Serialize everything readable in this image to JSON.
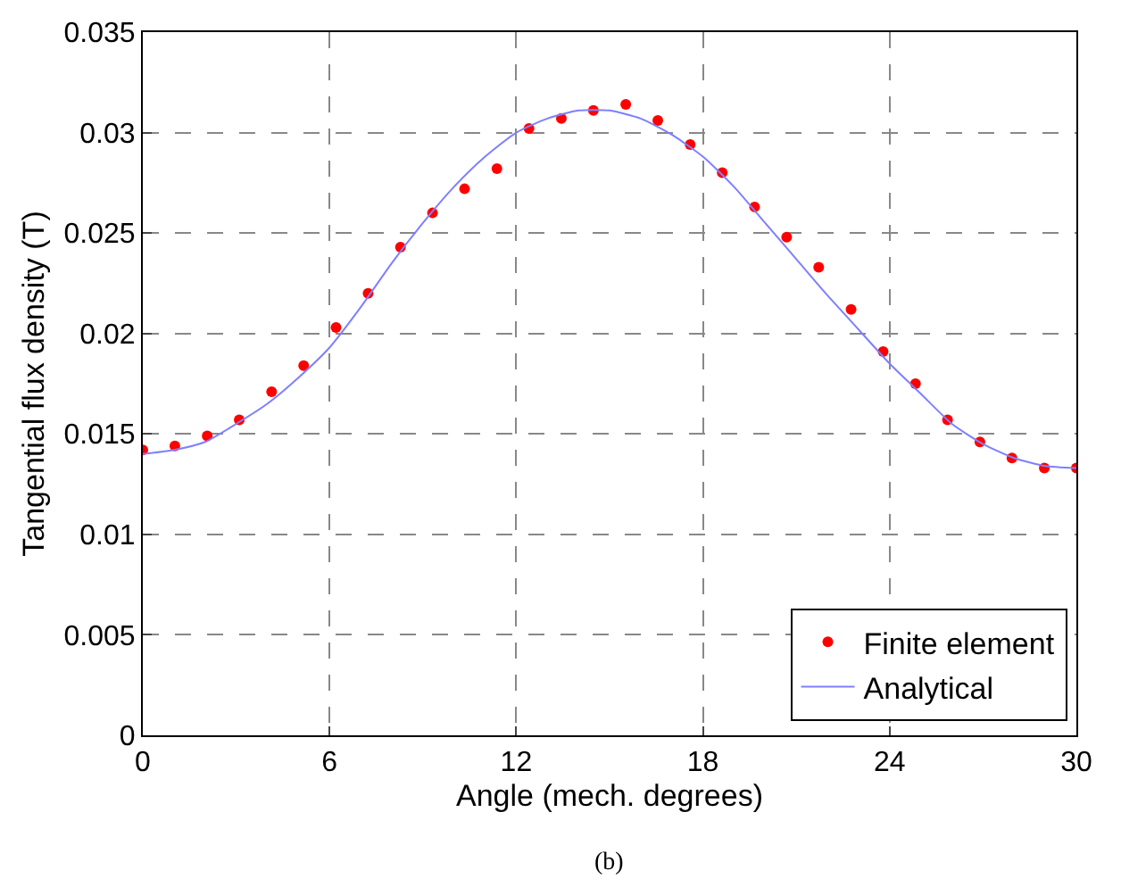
{
  "chart_data": {
    "type": "scatter",
    "xlabel": "Angle (mech. degrees)",
    "ylabel": "Tangential flux density (T)",
    "annotations": [
      "(b)"
    ],
    "series": [
      {
        "name": "Finite element",
        "color": "#ff0000",
        "marker": "circle",
        "x": [
          0,
          1.03,
          2.07,
          3.1,
          4.14,
          5.17,
          6.21,
          7.24,
          8.28,
          9.31,
          10.34,
          11.38,
          12.41,
          13.45,
          14.48,
          15.52,
          16.55,
          17.59,
          18.62,
          19.66,
          20.69,
          21.72,
          22.76,
          23.79,
          24.83,
          25.86,
          26.9,
          27.93,
          28.97,
          30
        ],
        "values": [
          0.0142,
          0.0144,
          0.0149,
          0.0157,
          0.0171,
          0.0184,
          0.0203,
          0.022,
          0.0243,
          0.026,
          0.0272,
          0.0282,
          0.0302,
          0.0307,
          0.0311,
          0.0314,
          0.0306,
          0.0294,
          0.028,
          0.0263,
          0.0248,
          0.0233,
          0.0212,
          0.0191,
          0.0175,
          0.0157,
          0.0146,
          0.0138,
          0.0133,
          0.0133
        ]
      },
      {
        "name": "Analytical",
        "type": "line",
        "color": "#7f7fff",
        "marker": "none",
        "line_style": "solid",
        "x": [
          0,
          1,
          2,
          3,
          4,
          5,
          6,
          7,
          8,
          9,
          10,
          11,
          12,
          13,
          14,
          15,
          16,
          17,
          18,
          19,
          20,
          21,
          22,
          23,
          24,
          25,
          26,
          27,
          28,
          29,
          30
        ],
        "values": [
          0.014,
          0.0142,
          0.0146,
          0.0155,
          0.0165,
          0.0178,
          0.0193,
          0.0213,
          0.0235,
          0.0255,
          0.0273,
          0.0288,
          0.03,
          0.0307,
          0.0311,
          0.0311,
          0.0307,
          0.0299,
          0.0288,
          0.0273,
          0.0255,
          0.0237,
          0.0219,
          0.0202,
          0.0185,
          0.017,
          0.0155,
          0.0145,
          0.0138,
          0.0134,
          0.0133
        ]
      }
    ],
    "xlim": [
      0,
      30
    ],
    "xticks": [
      0,
      6,
      12,
      18,
      24,
      30
    ],
    "ylim": [
      0,
      0.035
    ],
    "yticks": [
      0,
      0.005,
      0.01,
      0.015,
      0.02,
      0.025,
      0.03,
      0.035
    ],
    "grid": true,
    "legend": "bottom right"
  }
}
